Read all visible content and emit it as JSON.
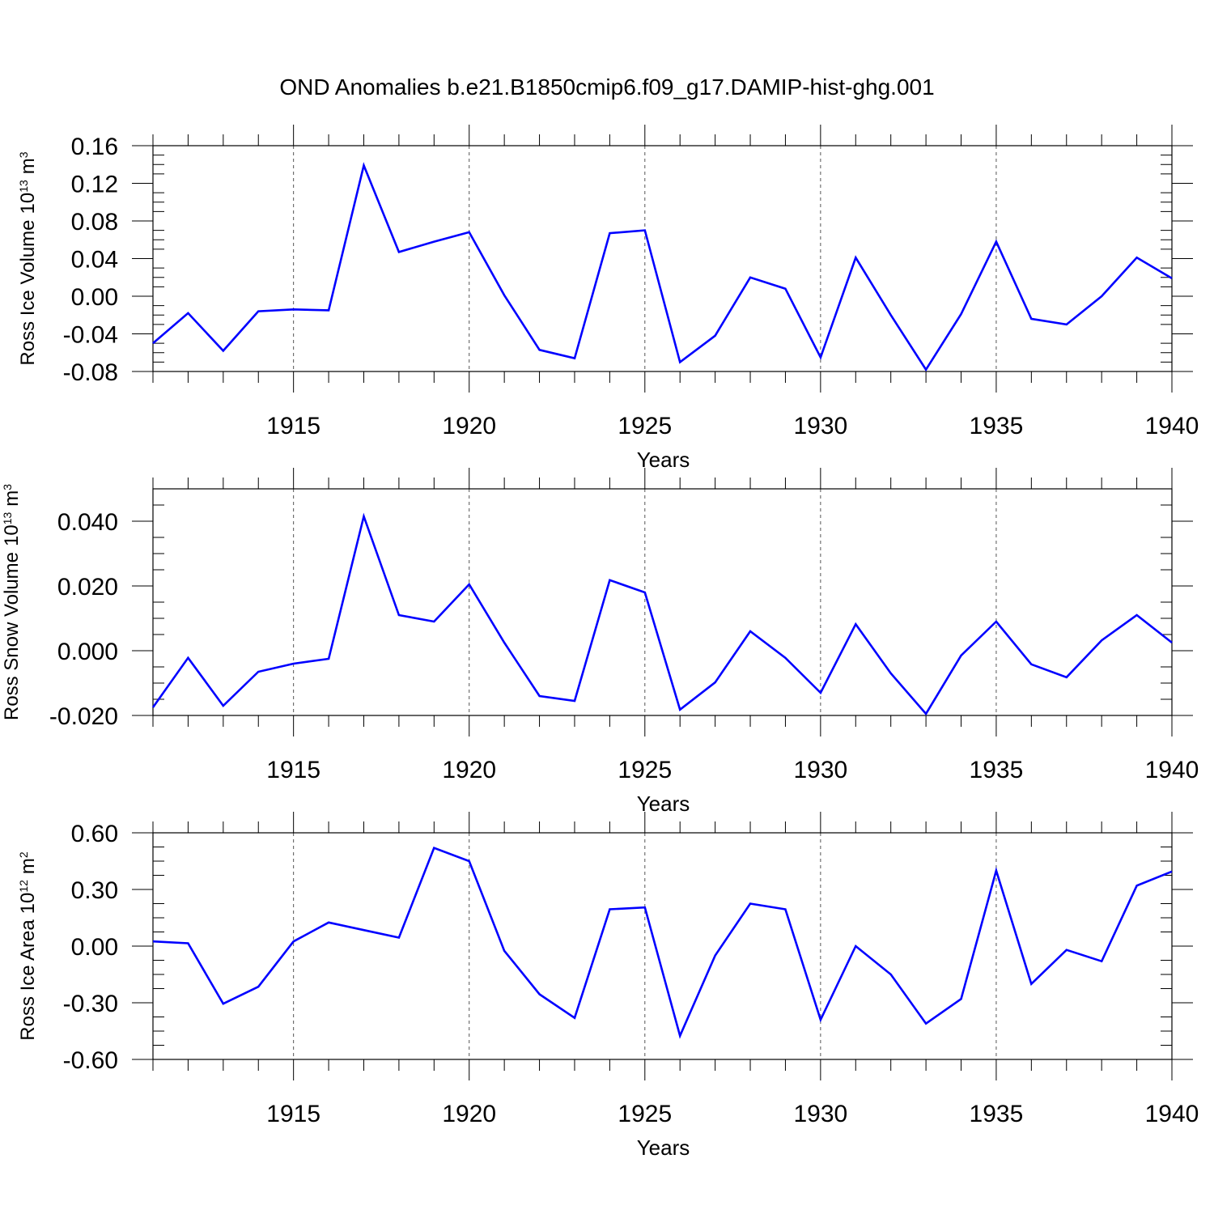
{
  "title": "OND Anomalies b.e21.B1850cmip6.f09_g17.DAMIP-hist-ghg.001",
  "line_color": "#0000ff",
  "chart_data": [
    {
      "type": "line",
      "ylabel": "Ross Ice Volume",
      "yunit_base": "10",
      "yunit_exp": "13",
      "yunit_unit": "m",
      "yunit_unit_exp": "3",
      "xlabel": "Years",
      "xlim": [
        1911,
        1940
      ],
      "ylim": [
        -0.08,
        0.16
      ],
      "yticks": [
        -0.08,
        -0.04,
        0.0,
        0.04,
        0.08,
        0.12,
        0.16
      ],
      "ytick_labels": [
        "-0.08",
        "-0.04",
        "0.00",
        "0.04",
        "0.08",
        "0.12",
        "0.16"
      ],
      "xticks": [
        1915,
        1920,
        1925,
        1930,
        1935,
        1940
      ],
      "xtick_labels": [
        "1915",
        "1920",
        "1925",
        "1930",
        "1935",
        "1940"
      ],
      "grid": "vertical dashed at labeled x ticks",
      "x": [
        1911,
        1912,
        1913,
        1914,
        1915,
        1916,
        1917,
        1918,
        1919,
        1920,
        1921,
        1922,
        1923,
        1924,
        1925,
        1926,
        1927,
        1928,
        1929,
        1930,
        1931,
        1932,
        1933,
        1934,
        1935,
        1936,
        1937,
        1938,
        1939,
        1940
      ],
      "series": [
        {
          "values": [
            -0.05,
            -0.018,
            -0.058,
            -0.016,
            -0.014,
            -0.015,
            0.139,
            0.047,
            0.058,
            0.068,
            0.001,
            -0.057,
            -0.066,
            0.067,
            0.07,
            -0.07,
            -0.042,
            0.02,
            0.008,
            -0.065,
            0.041,
            -0.02,
            -0.078,
            -0.019,
            0.058,
            -0.024,
            -0.03,
            0.0,
            0.041,
            0.019
          ]
        }
      ]
    },
    {
      "type": "line",
      "ylabel": "Ross Snow Volume",
      "yunit_base": "10",
      "yunit_exp": "13",
      "yunit_unit": "m",
      "yunit_unit_exp": "3",
      "xlabel": "Years",
      "xlim": [
        1911,
        1940
      ],
      "ylim": [
        -0.02,
        0.05
      ],
      "yticks": [
        -0.02,
        0.0,
        0.02,
        0.04
      ],
      "ytick_labels": [
        "-0.020",
        "0.000",
        "0.020",
        "0.040"
      ],
      "xticks": [
        1915,
        1920,
        1925,
        1930,
        1935,
        1940
      ],
      "xtick_labels": [
        "1915",
        "1920",
        "1925",
        "1930",
        "1935",
        "1940"
      ],
      "grid": "vertical dashed at labeled x ticks",
      "x": [
        1911,
        1912,
        1913,
        1914,
        1915,
        1916,
        1917,
        1918,
        1919,
        1920,
        1921,
        1922,
        1923,
        1924,
        1925,
        1926,
        1927,
        1928,
        1929,
        1930,
        1931,
        1932,
        1933,
        1934,
        1935,
        1936,
        1937,
        1938,
        1939,
        1940
      ],
      "series": [
        {
          "values": [
            -0.0175,
            -0.0022,
            -0.017,
            -0.0065,
            -0.004,
            -0.0025,
            0.0415,
            0.011,
            0.009,
            0.0205,
            0.0025,
            -0.014,
            -0.0155,
            0.0218,
            0.018,
            -0.0182,
            -0.0098,
            0.006,
            -0.0022,
            -0.013,
            0.0082,
            -0.007,
            -0.0195,
            -0.0015,
            0.009,
            -0.0042,
            -0.0082,
            0.0032,
            0.011,
            0.0025
          ]
        }
      ]
    },
    {
      "type": "line",
      "ylabel": "Ross Ice Area",
      "yunit_base": "10",
      "yunit_exp": "12",
      "yunit_unit": "m",
      "yunit_unit_exp": "2",
      "xlabel": "Years",
      "xlim": [
        1911,
        1940
      ],
      "ylim": [
        -0.6,
        0.6
      ],
      "yticks": [
        -0.6,
        -0.3,
        0.0,
        0.3,
        0.6
      ],
      "ytick_labels": [
        "-0.60",
        "-0.30",
        "0.00",
        "0.30",
        "0.60"
      ],
      "xticks": [
        1915,
        1920,
        1925,
        1930,
        1935,
        1940
      ],
      "xtick_labels": [
        "1915",
        "1920",
        "1925",
        "1930",
        "1935",
        "1940"
      ],
      "grid": "vertical dashed at labeled x ticks",
      "x": [
        1911,
        1912,
        1913,
        1914,
        1915,
        1916,
        1917,
        1918,
        1919,
        1920,
        1921,
        1922,
        1923,
        1924,
        1925,
        1926,
        1927,
        1928,
        1929,
        1930,
        1931,
        1932,
        1933,
        1934,
        1935,
        1936,
        1937,
        1938,
        1939,
        1940
      ],
      "series": [
        {
          "values": [
            0.025,
            0.015,
            -0.305,
            -0.215,
            0.025,
            0.125,
            0.085,
            0.045,
            0.52,
            0.45,
            -0.025,
            -0.255,
            -0.38,
            0.195,
            0.205,
            -0.475,
            -0.05,
            0.225,
            0.195,
            -0.39,
            0.0,
            -0.15,
            -0.41,
            -0.28,
            0.4,
            -0.2,
            -0.02,
            -0.08,
            0.32,
            0.395
          ]
        }
      ]
    }
  ]
}
